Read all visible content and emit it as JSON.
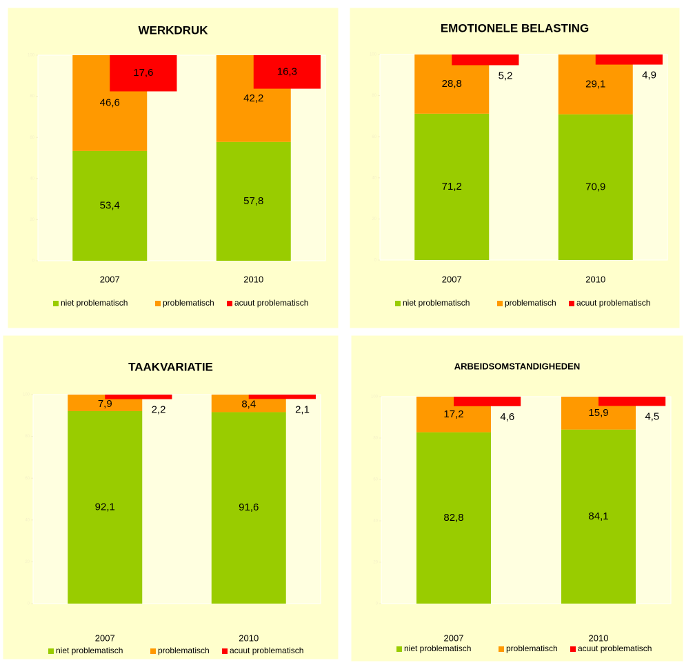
{
  "chart_data": [
    {
      "type": "bar",
      "title": "WERKDRUK",
      "categories": [
        "2007",
        "2010"
      ],
      "ylim": [
        0,
        100
      ],
      "yticks": [
        0,
        20,
        40,
        60,
        80,
        100
      ],
      "y2lim": [
        100,
        0
      ],
      "series": [
        {
          "name": "niet problematisch",
          "color": "#99cc00",
          "values": [
            53.4,
            57.8
          ],
          "value_labels": [
            "53,4",
            "57,8"
          ]
        },
        {
          "name": "problematisch",
          "color": "#ff9900",
          "values": [
            46.6,
            42.2
          ],
          "value_labels": [
            "46,6",
            "42,2"
          ]
        },
        {
          "name": "acuut problematisch",
          "color": "#ff0000",
          "axis": "y2",
          "values": [
            17.6,
            16.3
          ],
          "value_labels": [
            "17,6",
            "16,3"
          ]
        }
      ]
    },
    {
      "type": "bar",
      "title": "EMOTIONELE BELASTING",
      "categories": [
        "2007",
        "2010"
      ],
      "ylim": [
        0,
        100
      ],
      "yticks": [
        0,
        20,
        40,
        60,
        80,
        100
      ],
      "y2lim": [
        100,
        0
      ],
      "series": [
        {
          "name": "niet problematisch",
          "color": "#99cc00",
          "values": [
            71.2,
            70.9
          ],
          "value_labels": [
            "71,2",
            "70,9"
          ]
        },
        {
          "name": "problematisch",
          "color": "#ff9900",
          "values": [
            28.8,
            29.1
          ],
          "value_labels": [
            "28,8",
            "29,1"
          ]
        },
        {
          "name": "acuut problematisch",
          "color": "#ff0000",
          "axis": "y2",
          "values": [
            5.2,
            4.9
          ],
          "value_labels": [
            "5,2",
            "4,9"
          ]
        }
      ]
    },
    {
      "type": "bar",
      "title": "TAAKVARIATIE",
      "categories": [
        "2007",
        "2010"
      ],
      "ylim": [
        0,
        100
      ],
      "yticks": [
        0,
        20,
        40,
        60,
        80,
        100
      ],
      "y2lim": [
        100,
        0
      ],
      "series": [
        {
          "name": "niet problematisch",
          "color": "#99cc00",
          "values": [
            92.1,
            91.6
          ],
          "value_labels": [
            "92,1",
            "91,6"
          ]
        },
        {
          "name": "problematisch",
          "color": "#ff9900",
          "values": [
            7.9,
            8.4
          ],
          "value_labels": [
            "7,9",
            "8,4"
          ]
        },
        {
          "name": "acuut problematisch",
          "color": "#ff0000",
          "axis": "y2",
          "values": [
            2.2,
            2.1
          ],
          "value_labels": [
            "2,2",
            "2,1"
          ]
        }
      ]
    },
    {
      "type": "bar",
      "title": "ARBEIDSOMSTANDIGHEDEN",
      "categories": [
        "2007",
        "2010"
      ],
      "ylim": [
        0,
        100
      ],
      "yticks": [
        0,
        20,
        40,
        60,
        80,
        100
      ],
      "y2lim": [
        100,
        0
      ],
      "series": [
        {
          "name": "niet problematisch",
          "color": "#99cc00",
          "values": [
            82.8,
            84.1
          ],
          "value_labels": [
            "82,8",
            "84,1"
          ]
        },
        {
          "name": "problematisch",
          "color": "#ff9900",
          "values": [
            17.2,
            15.9
          ],
          "value_labels": [
            "17,2",
            "15,9"
          ]
        },
        {
          "name": "acuut problematisch",
          "color": "#ff0000",
          "axis": "y2",
          "values": [
            4.6,
            4.5
          ],
          "value_labels": [
            "4,6",
            "4,5"
          ]
        }
      ]
    }
  ]
}
